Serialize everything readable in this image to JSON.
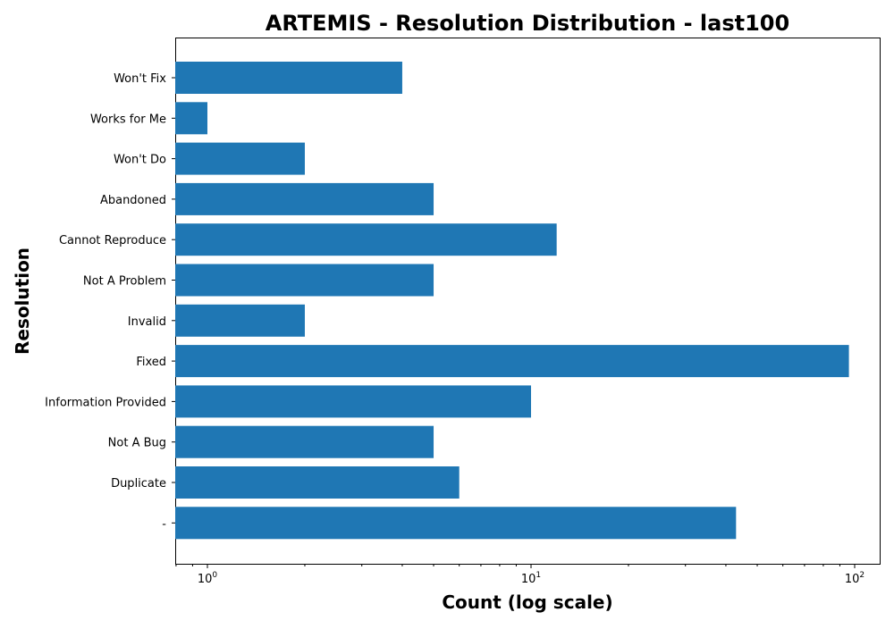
{
  "chart_data": {
    "type": "bar",
    "orientation": "horizontal",
    "title": "ARTEMIS - Resolution Distribution - last100",
    "xlabel": "Count (log scale)",
    "ylabel": "Resolution",
    "xscale": "log",
    "xlim": [
      0.8,
      120
    ],
    "categories": [
      "Won't Fix",
      "Works for Me",
      "Won't Do",
      "Abandoned",
      "Cannot Reproduce",
      "Not A Problem",
      "Invalid",
      "Fixed",
      "Information Provided",
      "Not A Bug",
      "Duplicate",
      "-"
    ],
    "values": [
      4,
      1,
      2,
      5,
      12,
      5,
      2,
      96,
      10,
      5,
      6,
      43
    ],
    "x_ticks": [
      {
        "base": "10",
        "exp": "0",
        "value": 1
      },
      {
        "base": "10",
        "exp": "1",
        "value": 10
      },
      {
        "base": "10",
        "exp": "2",
        "value": 100
      }
    ],
    "bar_color": "#1f77b4",
    "grid": false,
    "legend": "none"
  }
}
